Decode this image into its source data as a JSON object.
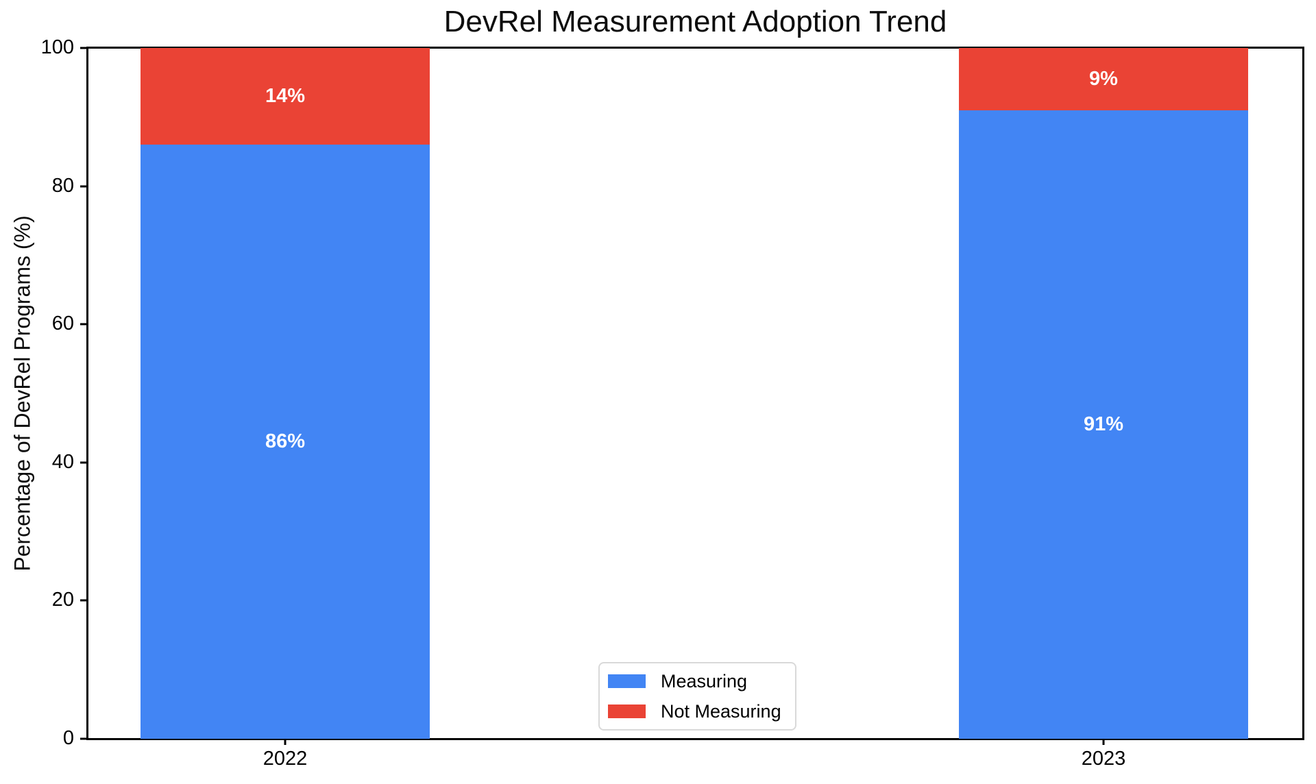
{
  "chart_data": {
    "type": "bar",
    "stacked": true,
    "title": "DevRel Measurement Adoption Trend",
    "ylabel": "Percentage of DevRel Programs (%)",
    "xlabel": "",
    "categories": [
      "2022",
      "2023"
    ],
    "series": [
      {
        "name": "Measuring",
        "color": "#4285F4",
        "values": [
          86,
          91
        ],
        "data_labels": [
          "86%",
          "91%"
        ]
      },
      {
        "name": "Not Measuring",
        "color": "#EA4335",
        "values": [
          14,
          9
        ],
        "data_labels": [
          "14%",
          "9%"
        ]
      }
    ],
    "ylim": [
      0,
      100
    ],
    "yticks": [
      "0",
      "20",
      "40",
      "60",
      "80",
      "100"
    ],
    "legend": {
      "position": "lower center",
      "entries": [
        "Measuring",
        "Not Measuring"
      ]
    },
    "grid": false,
    "bar_label_color": "#ffffff",
    "axis_color": "#000000",
    "legend_border_color": "#d9d9d9",
    "background_color": "#ffffff"
  }
}
